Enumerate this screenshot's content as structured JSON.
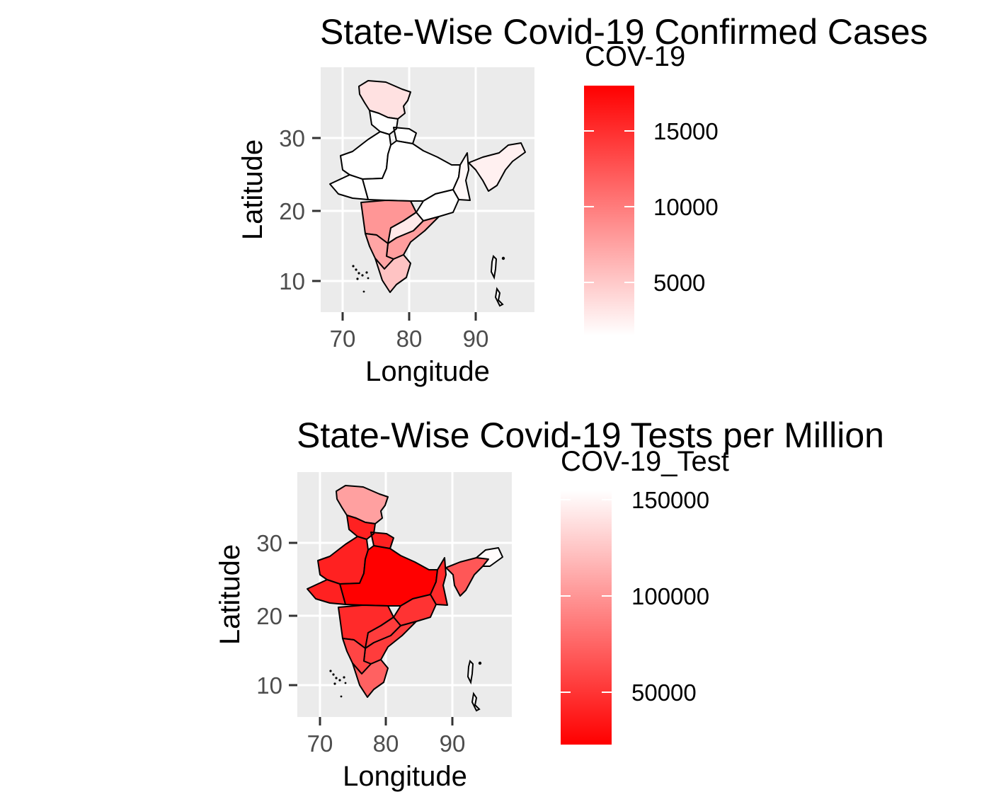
{
  "panels": [
    {
      "title": "State-Wise Covid-19 Confirmed Cases",
      "xlabel": "Longitude",
      "ylabel": "Latitude",
      "x_ticks": [
        "70",
        "80",
        "90"
      ],
      "y_ticks": [
        "30",
        "20",
        "10"
      ],
      "legend_title": "COV-19",
      "legend_labels": [
        "15000",
        "10000",
        "5000"
      ],
      "legend_colors": {
        "low": "#ffffff",
        "high": "#ff0000"
      }
    },
    {
      "title": "State-Wise Covid-19 Tests per Million",
      "xlabel": "Longitude",
      "ylabel": "Latitude",
      "x_ticks": [
        "70",
        "80",
        "90"
      ],
      "y_ticks": [
        "30",
        "20",
        "10"
      ],
      "legend_title": "COV-19_Test",
      "legend_labels": [
        "150000",
        "100000",
        "50000"
      ],
      "legend_colors": {
        "low": "#ff0000",
        "high": "#ffffff"
      }
    }
  ],
  "chart_data": [
    {
      "type": "choropleth",
      "title": "State-Wise Covid-19 Confirmed Cases",
      "xlabel": "Longitude",
      "ylabel": "Latitude",
      "xlim": [
        66.5,
        98.5
      ],
      "ylim": [
        5.5,
        39.5
      ],
      "x_ticks": [
        70,
        80,
        90
      ],
      "y_ticks": [
        10,
        20,
        30
      ],
      "grid": true,
      "legend": {
        "title": "COV-19",
        "position": "right",
        "range": [
          1000,
          18000
        ],
        "breaks": [
          5000,
          10000,
          15000
        ],
        "low_color": "#ffffff",
        "high_color": "#ff0000"
      },
      "regions": [
        {
          "region": "north-kashmir",
          "value": 3000
        },
        {
          "region": "himalaya",
          "value": 800
        },
        {
          "region": "northwest-plains",
          "value": 400
        },
        {
          "region": "central-plains",
          "value": 300
        },
        {
          "region": "west-coast-west",
          "value": 200
        },
        {
          "region": "east-bengal",
          "value": 1500
        },
        {
          "region": "northeast",
          "value": 2000
        },
        {
          "region": "deccan-west",
          "value": 8000
        },
        {
          "region": "deccan-east",
          "value": 2500
        },
        {
          "region": "southeast",
          "value": 7500
        },
        {
          "region": "southwest",
          "value": 7000
        },
        {
          "region": "southern-tip",
          "value": 5000
        },
        {
          "region": "central-east",
          "value": 1000
        }
      ]
    },
    {
      "type": "choropleth",
      "title": "State-Wise Covid-19 Tests per Million",
      "xlabel": "Longitude",
      "ylabel": "Latitude",
      "xlim": [
        66.5,
        98.5
      ],
      "ylim": [
        5.5,
        39.5
      ],
      "x_ticks": [
        70,
        80,
        90
      ],
      "y_ticks": [
        10,
        20,
        30
      ],
      "grid": true,
      "legend": {
        "title": "COV-19_Test",
        "position": "right",
        "range": [
          22000,
          162000
        ],
        "breaks": [
          50000,
          100000,
          150000
        ],
        "low_color": "#ff0000",
        "high_color": "#ffffff"
      },
      "regions": [
        {
          "region": "north-kashmir",
          "value": 110000
        },
        {
          "region": "himalaya",
          "value": 40000
        },
        {
          "region": "northwest-plains",
          "value": 40000
        },
        {
          "region": "central-plains",
          "value": 22000
        },
        {
          "region": "west-coast-west",
          "value": 40000
        },
        {
          "region": "east-bengal",
          "value": 45000
        },
        {
          "region": "northeast",
          "value": 70000
        },
        {
          "region": "northeast-far",
          "value": 160000
        },
        {
          "region": "deccan-west",
          "value": 45000
        },
        {
          "region": "deccan-east",
          "value": 55000
        },
        {
          "region": "southeast",
          "value": 55000
        },
        {
          "region": "southwest",
          "value": 60000
        },
        {
          "region": "southern-tip",
          "value": 75000
        },
        {
          "region": "central-east",
          "value": 50000
        }
      ]
    }
  ]
}
